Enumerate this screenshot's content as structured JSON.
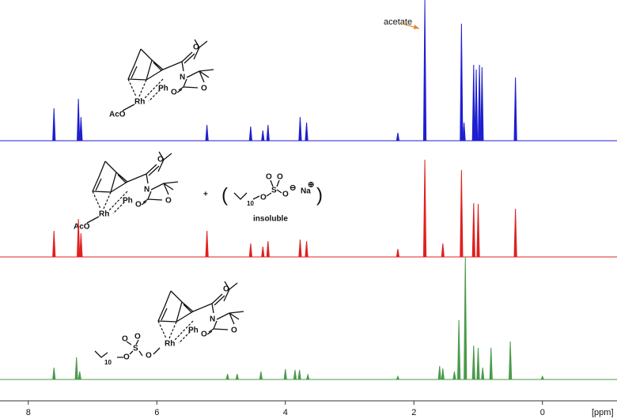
{
  "chart_data": {
    "type": "stick",
    "xlabel": "[ppm]",
    "xlim": [
      8.44,
      -1.16
    ],
    "xticks": [
      8,
      6,
      4,
      2,
      0
    ],
    "annotation": "acetate",
    "series": [
      {
        "color": "#1f1fd0",
        "x": [
          7.6,
          7.22,
          7.18,
          5.22,
          4.54,
          4.35,
          4.27,
          3.77,
          3.67,
          2.25,
          1.83,
          1.26,
          1.22,
          1.07,
          1.03,
          0.98,
          0.94,
          0.42
        ],
        "values": [
          41,
          53,
          30,
          20,
          18,
          13,
          20,
          30,
          23,
          10,
          178,
          148,
          23,
          96,
          90,
          96,
          93,
          80
        ]
      },
      {
        "color": "#e02020",
        "x": [
          7.6,
          7.22,
          7.18,
          5.22,
          4.54,
          4.35,
          4.27,
          3.77,
          3.67,
          2.25,
          1.83,
          1.55,
          1.26,
          1.07,
          1.0,
          0.42
        ],
        "values": [
          33,
          48,
          30,
          33,
          17,
          13,
          20,
          22,
          20,
          10,
          123,
          17,
          110,
          68,
          67,
          61
        ]
      },
      {
        "color": "#4a9a4a",
        "x": [
          7.6,
          7.25,
          7.2,
          4.9,
          4.75,
          4.38,
          4.0,
          3.85,
          3.78,
          3.65,
          2.25,
          1.6,
          1.55,
          1.37,
          1.3,
          1.2,
          1.07,
          1.0,
          0.93,
          0.8,
          0.5,
          0.0
        ],
        "values": [
          15,
          28,
          10,
          7,
          7,
          10,
          13,
          12,
          12,
          6,
          4,
          17,
          14,
          10,
          75,
          155,
          43,
          40,
          15,
          40,
          48,
          4
        ]
      }
    ]
  },
  "structures": [
    {
      "labels": [
        "AcO",
        "Rh",
        "Ph",
        "O",
        "N",
        "O",
        "O"
      ]
    },
    {
      "labels": [
        "AcO",
        "Rh",
        "Ph",
        "O",
        "N",
        "O",
        "O",
        "+",
        "(",
        "10",
        "O",
        "S",
        "O",
        "O",
        "O",
        "⊖",
        "Na",
        "⊕",
        ")",
        "insoluble"
      ]
    },
    {
      "labels": [
        "Rh",
        "Ph",
        "O",
        "N",
        "O",
        "O",
        "10",
        "O",
        "S",
        "O",
        "O",
        "O"
      ]
    }
  ]
}
